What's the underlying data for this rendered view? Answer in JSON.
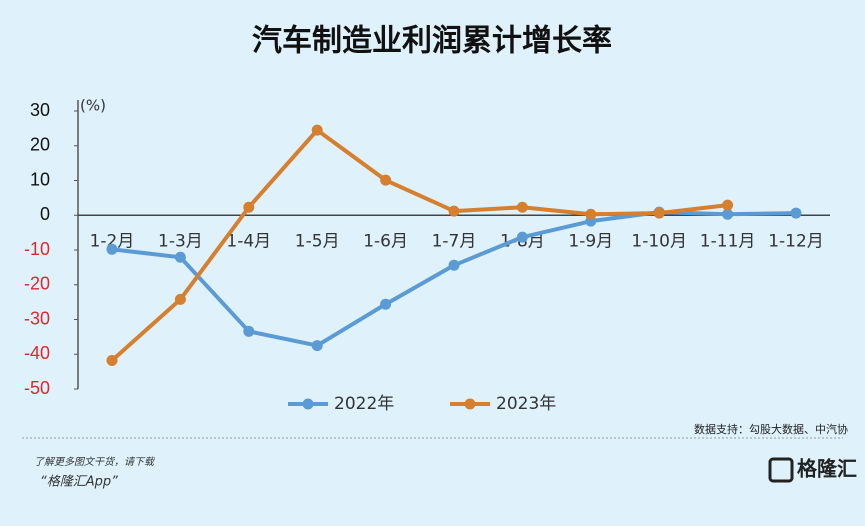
{
  "chart_data": {
    "type": "line",
    "title": "汽车制造业利润累计增长率",
    "y_label": "(%)",
    "categories": [
      "1-2月",
      "1-3月",
      "1-4月",
      "1-5月",
      "1-6月",
      "1-7月",
      "1-8月",
      "1-9月",
      "1-10月",
      "1-11月",
      "1-12月"
    ],
    "series": [
      {
        "name": "2022年",
        "color": "#5b9bd5",
        "values": [
          -9.8,
          -12.1,
          -33.4,
          -37.5,
          -25.6,
          -14.4,
          -6.3,
          -1.7,
          0.9,
          0.3,
          0.6
        ]
      },
      {
        "name": "2023年",
        "color": "#d67f2e",
        "values": [
          -41.8,
          -24.2,
          2.3,
          24.5,
          10.1,
          1.2,
          2.3,
          0.3,
          0.6,
          2.9,
          null
        ]
      }
    ],
    "ylim": [
      -50,
      30
    ],
    "yticks": [
      -50,
      -40,
      -30,
      -20,
      -10,
      0,
      10,
      20,
      30
    ]
  },
  "source": "数据支持：勾股大数据、中汽协",
  "footer": {
    "line1": "了解更多图文干货，请下载",
    "line2": "“格隆汇App”",
    "logo": "格隆汇"
  }
}
